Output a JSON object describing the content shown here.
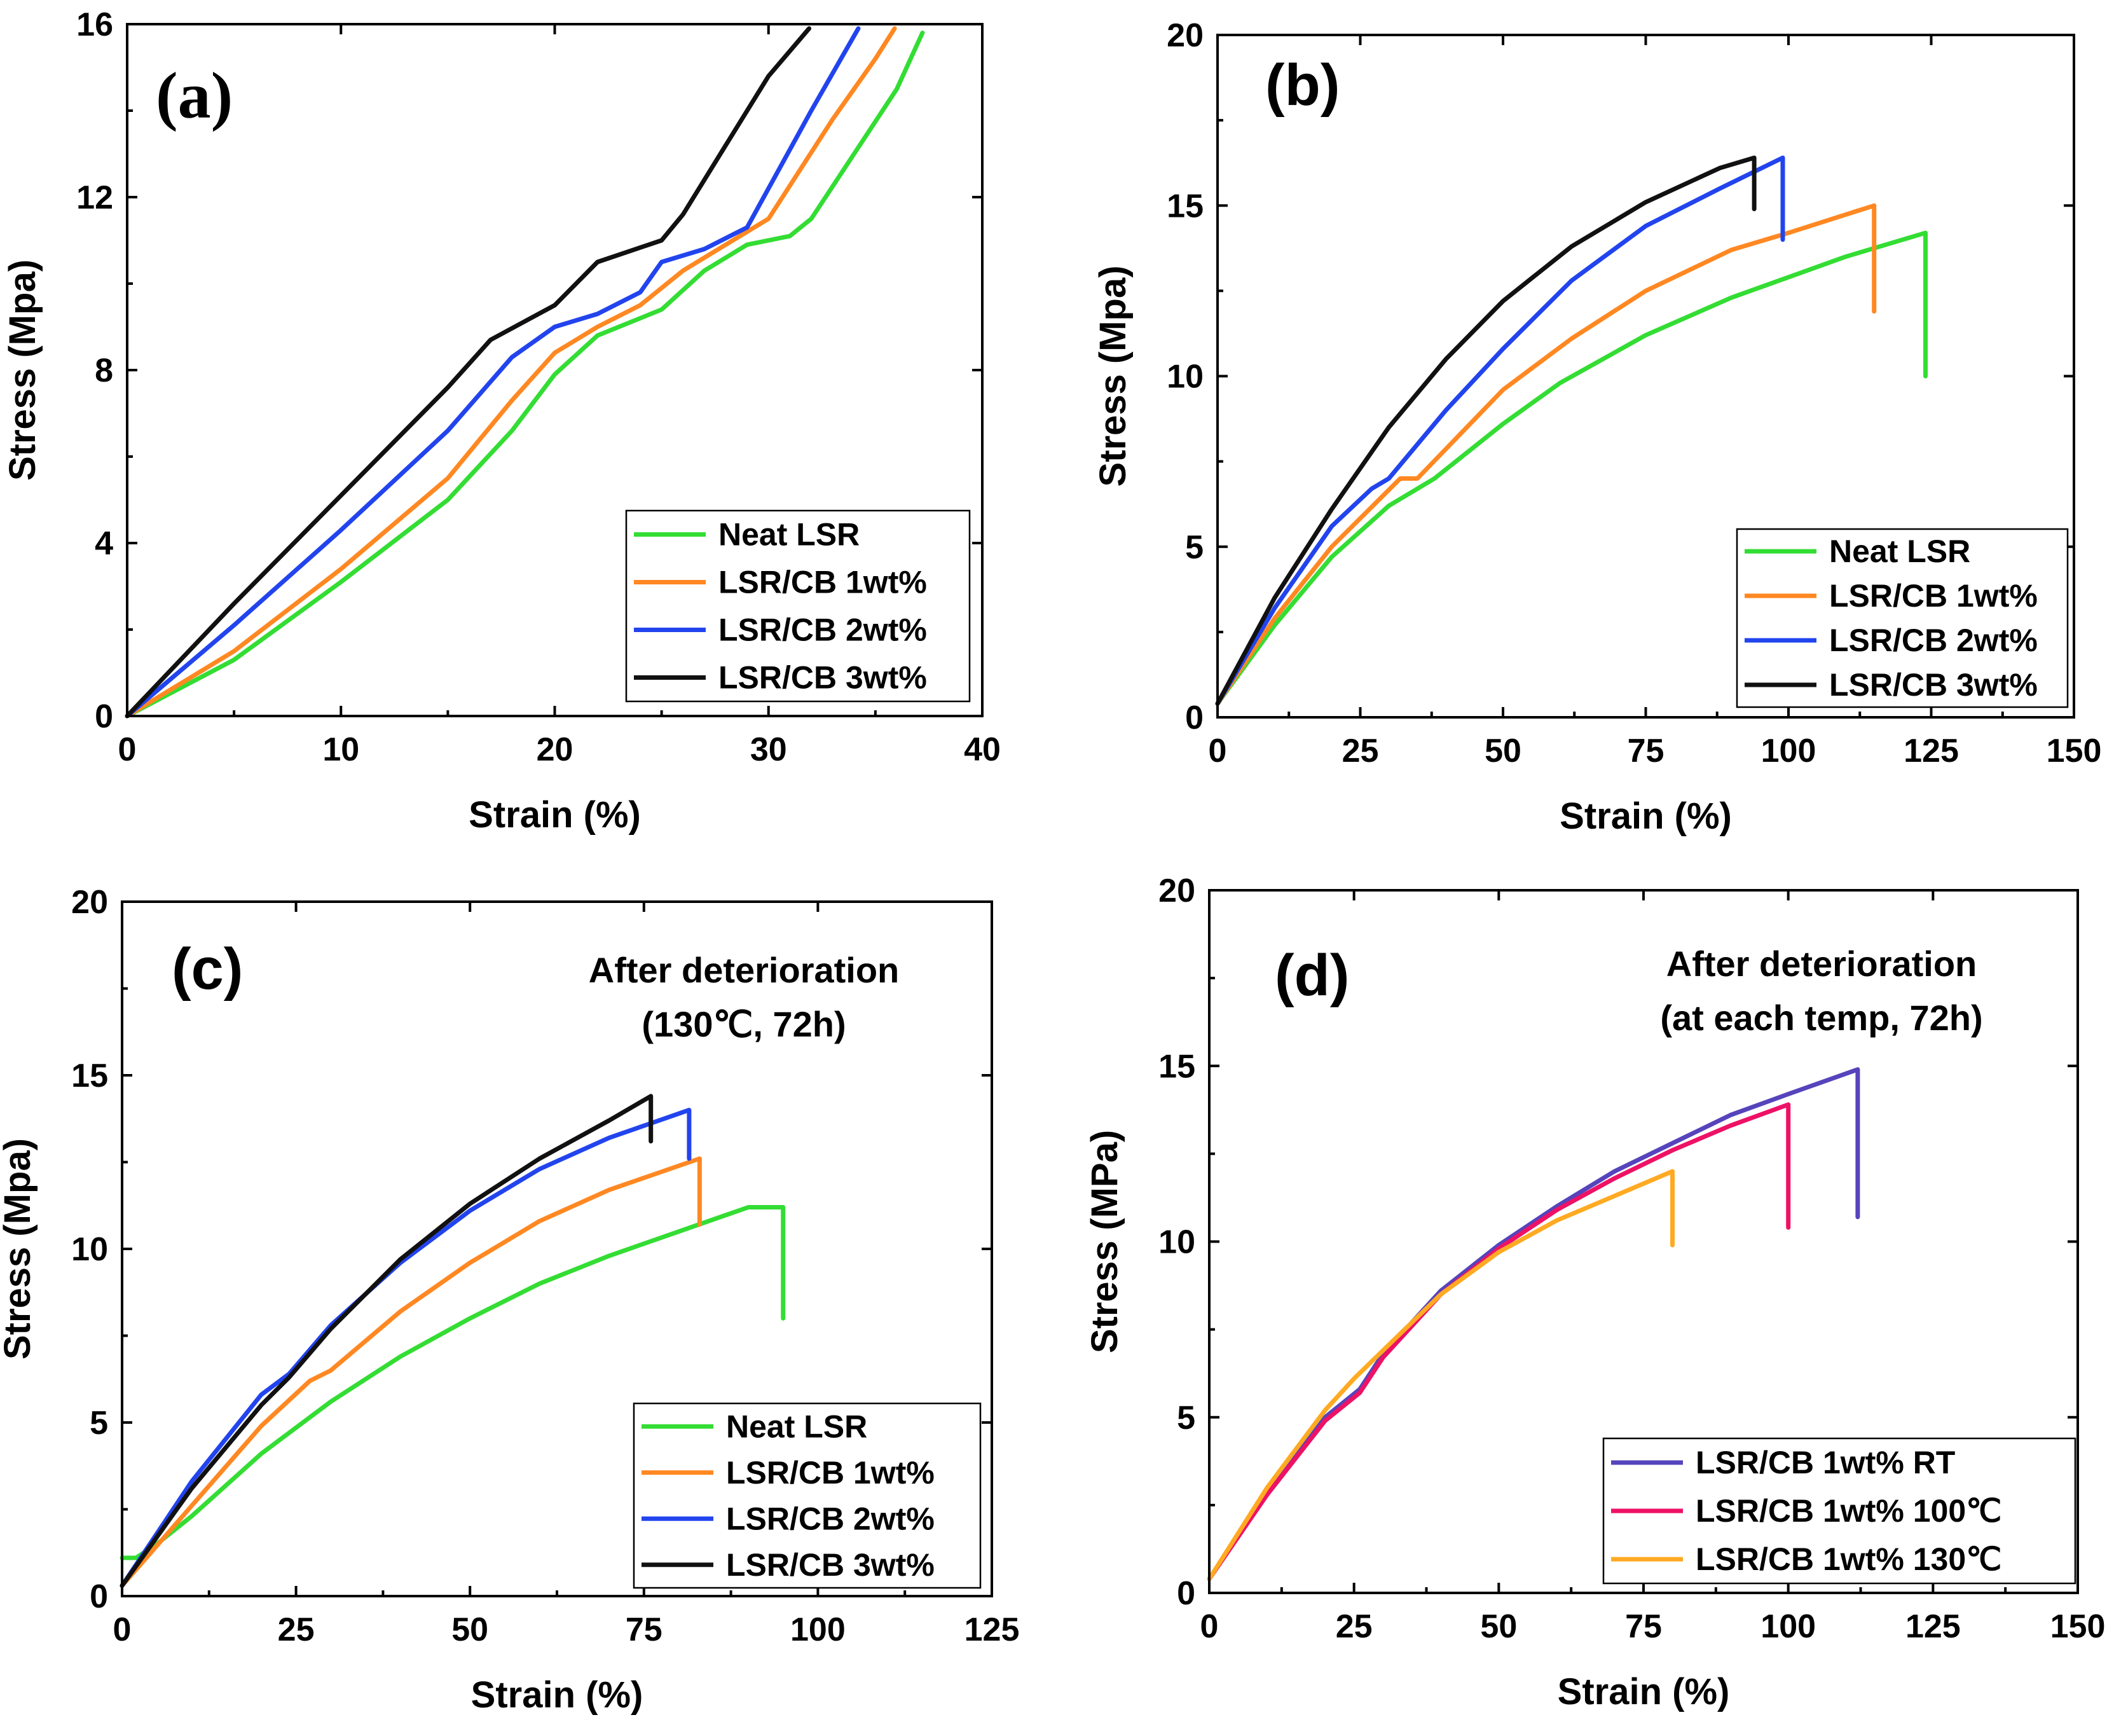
{
  "chart_data": [
    {
      "type": "line",
      "panel_label": "(a)",
      "annotation_lines": [],
      "xlabel": "Strain (%)",
      "ylabel": "Stress (Mpa)",
      "xlim": [
        0,
        40
      ],
      "ylim": [
        0,
        16
      ],
      "xticks": [
        "0",
        "10",
        "20",
        "30",
        "40"
      ],
      "yticks": [
        "0",
        "4",
        "8",
        "12",
        "16"
      ],
      "legend_position": "bottom-right",
      "series": [
        {
          "name": "Neat LSR",
          "color": "#33dd33",
          "x": [
            0,
            5,
            10,
            15,
            18,
            20,
            22,
            25,
            27,
            29,
            31,
            32,
            34,
            36,
            37.2
          ],
          "y": [
            0,
            1.3,
            3.1,
            5.0,
            6.6,
            7.9,
            8.8,
            9.4,
            10.3,
            10.9,
            11.1,
            11.5,
            13.0,
            14.5,
            15.8
          ]
        },
        {
          "name": "LSR/CB 1wt%",
          "color": "#ff8822",
          "x": [
            0,
            5,
            10,
            15,
            18,
            20,
            22,
            24,
            26,
            28,
            30,
            33,
            35,
            35.9
          ],
          "y": [
            0,
            1.5,
            3.4,
            5.5,
            7.3,
            8.4,
            9.0,
            9.5,
            10.3,
            10.9,
            11.5,
            13.8,
            15.2,
            15.9
          ]
        },
        {
          "name": "LSR/CB 2wt%",
          "color": "#2244ee",
          "x": [
            0,
            5,
            10,
            15,
            18,
            20,
            22,
            24,
            25,
            27,
            29,
            32,
            34.2
          ],
          "y": [
            0,
            2.1,
            4.3,
            6.6,
            8.3,
            9.0,
            9.3,
            9.8,
            10.5,
            10.8,
            11.3,
            14.0,
            15.9
          ]
        },
        {
          "name": "LSR/CB 3wt%",
          "color": "#111111",
          "x": [
            0,
            5,
            10,
            15,
            17,
            20,
            22,
            25,
            26,
            28,
            30,
            31.9
          ],
          "y": [
            0,
            2.6,
            5.1,
            7.6,
            8.7,
            9.5,
            10.5,
            11.0,
            11.6,
            13.2,
            14.8,
            15.9
          ]
        }
      ]
    },
    {
      "type": "line",
      "panel_label": "(b)",
      "annotation_lines": [],
      "xlabel": "Strain (%)",
      "ylabel": "Stress (Mpa)",
      "xlim": [
        0,
        150
      ],
      "ylim": [
        0,
        20
      ],
      "xticks": [
        "0",
        "25",
        "50",
        "75",
        "100",
        "125",
        "150"
      ],
      "yticks": [
        "0",
        "5",
        "10",
        "15",
        "20"
      ],
      "legend_position": "bottom-right",
      "series": [
        {
          "name": "Neat LSR",
          "color": "#33dd33",
          "x": [
            0,
            10,
            20,
            30,
            38,
            50,
            60,
            75,
            90,
            100,
            110,
            124,
            124
          ],
          "y": [
            0.4,
            2.7,
            4.7,
            6.2,
            7.0,
            8.6,
            9.8,
            11.2,
            12.3,
            12.9,
            13.5,
            14.2,
            10.0
          ]
        },
        {
          "name": "LSR/CB 1wt%",
          "color": "#ff8822",
          "x": [
            0,
            10,
            20,
            32,
            35,
            50,
            62,
            75,
            90,
            100,
            115,
            115
          ],
          "y": [
            0.4,
            2.9,
            5.0,
            7.0,
            7.0,
            9.6,
            11.1,
            12.5,
            13.7,
            14.2,
            15.0,
            11.9
          ]
        },
        {
          "name": "LSR/CB 2wt%",
          "color": "#2244ee",
          "x": [
            0,
            10,
            20,
            27,
            30,
            40,
            50,
            62,
            75,
            88,
            99,
            99
          ],
          "y": [
            0.4,
            3.2,
            5.6,
            6.7,
            7.0,
            9.0,
            10.8,
            12.8,
            14.4,
            15.5,
            16.4,
            14.0
          ]
        },
        {
          "name": "LSR/CB 3wt%",
          "color": "#111111",
          "x": [
            0,
            10,
            20,
            30,
            40,
            50,
            62,
            75,
            88,
            94,
            94
          ],
          "y": [
            0.4,
            3.5,
            6.1,
            8.5,
            10.5,
            12.2,
            13.8,
            15.1,
            16.1,
            16.4,
            14.9
          ]
        }
      ]
    },
    {
      "type": "line",
      "panel_label": "(c)",
      "annotation_lines": [
        "After deterioration",
        "(130℃, 72h)"
      ],
      "xlabel": "Strain (%)",
      "ylabel": "Stress (Mpa)",
      "xlim": [
        0,
        125
      ],
      "ylim": [
        0,
        20
      ],
      "xticks": [
        "0",
        "25",
        "50",
        "75",
        "100",
        "125"
      ],
      "yticks": [
        "0",
        "5",
        "10",
        "15",
        "20"
      ],
      "legend_position": "bottom-right",
      "series": [
        {
          "name": "Neat LSR",
          "color": "#33dd33",
          "x": [
            0,
            2,
            5,
            10,
            20,
            30,
            40,
            50,
            60,
            70,
            80,
            90,
            95,
            95
          ],
          "y": [
            1.1,
            1.1,
            1.5,
            2.3,
            4.1,
            5.6,
            6.9,
            8.0,
            9.0,
            9.8,
            10.5,
            11.2,
            11.2,
            8.0
          ]
        },
        {
          "name": "LSR/CB 1wt%",
          "color": "#ff8822",
          "x": [
            0,
            10,
            20,
            27,
            30,
            40,
            50,
            60,
            70,
            83,
            83
          ],
          "y": [
            0.3,
            2.6,
            4.9,
            6.2,
            6.5,
            8.2,
            9.6,
            10.8,
            11.7,
            12.6,
            10.7
          ]
        },
        {
          "name": "LSR/CB 2wt%",
          "color": "#2244ee",
          "x": [
            0,
            10,
            20,
            24,
            30,
            40,
            50,
            60,
            70,
            81.5,
            81.5
          ],
          "y": [
            0.3,
            3.3,
            5.8,
            6.4,
            7.8,
            9.6,
            11.1,
            12.3,
            13.2,
            14.0,
            12.6
          ]
        },
        {
          "name": "LSR/CB 3wt%",
          "color": "#111111",
          "x": [
            0,
            10,
            20,
            24,
            30,
            40,
            50,
            60,
            70,
            76,
            76
          ],
          "y": [
            0.3,
            3.1,
            5.5,
            6.3,
            7.7,
            9.7,
            11.3,
            12.6,
            13.7,
            14.4,
            13.1
          ]
        }
      ]
    },
    {
      "type": "line",
      "panel_label": "(d)",
      "annotation_lines": [
        "After deterioration",
        "(at  each temp, 72h)"
      ],
      "xlabel": "Strain (%)",
      "ylabel": "Stress (MPa)",
      "xlim": [
        0,
        150
      ],
      "ylim": [
        0,
        20
      ],
      "xticks": [
        "0",
        "25",
        "50",
        "75",
        "100",
        "125",
        "150"
      ],
      "yticks": [
        "0",
        "5",
        "10",
        "15",
        "20"
      ],
      "legend_position": "bottom-right",
      "series": [
        {
          "name": "LSR/CB 1wt% RT",
          "color": "#5544bb",
          "x": [
            0,
            10,
            20,
            26,
            30,
            40,
            50,
            60,
            70,
            80,
            90,
            100,
            112,
            112
          ],
          "y": [
            0.4,
            2.9,
            5.0,
            5.8,
            6.8,
            8.6,
            9.9,
            11.0,
            12.0,
            12.8,
            13.6,
            14.2,
            14.9,
            10.7
          ]
        },
        {
          "name": "LSR/CB 1wt% 100℃",
          "color": "#ee1166",
          "x": [
            0,
            10,
            20,
            26,
            30,
            40,
            50,
            60,
            70,
            80,
            90,
            100,
            100
          ],
          "y": [
            0.4,
            2.8,
            4.9,
            5.7,
            6.7,
            8.5,
            9.8,
            10.9,
            11.8,
            12.6,
            13.3,
            13.9,
            10.4
          ]
        },
        {
          "name": "LSR/CB 1wt% 130℃",
          "color": "#ffaa22",
          "x": [
            0,
            10,
            20,
            25,
            30,
            40,
            50,
            60,
            70,
            80,
            80
          ],
          "y": [
            0.4,
            3.0,
            5.2,
            6.1,
            6.9,
            8.5,
            9.7,
            10.6,
            11.3,
            12.0,
            9.9
          ]
        }
      ]
    }
  ]
}
